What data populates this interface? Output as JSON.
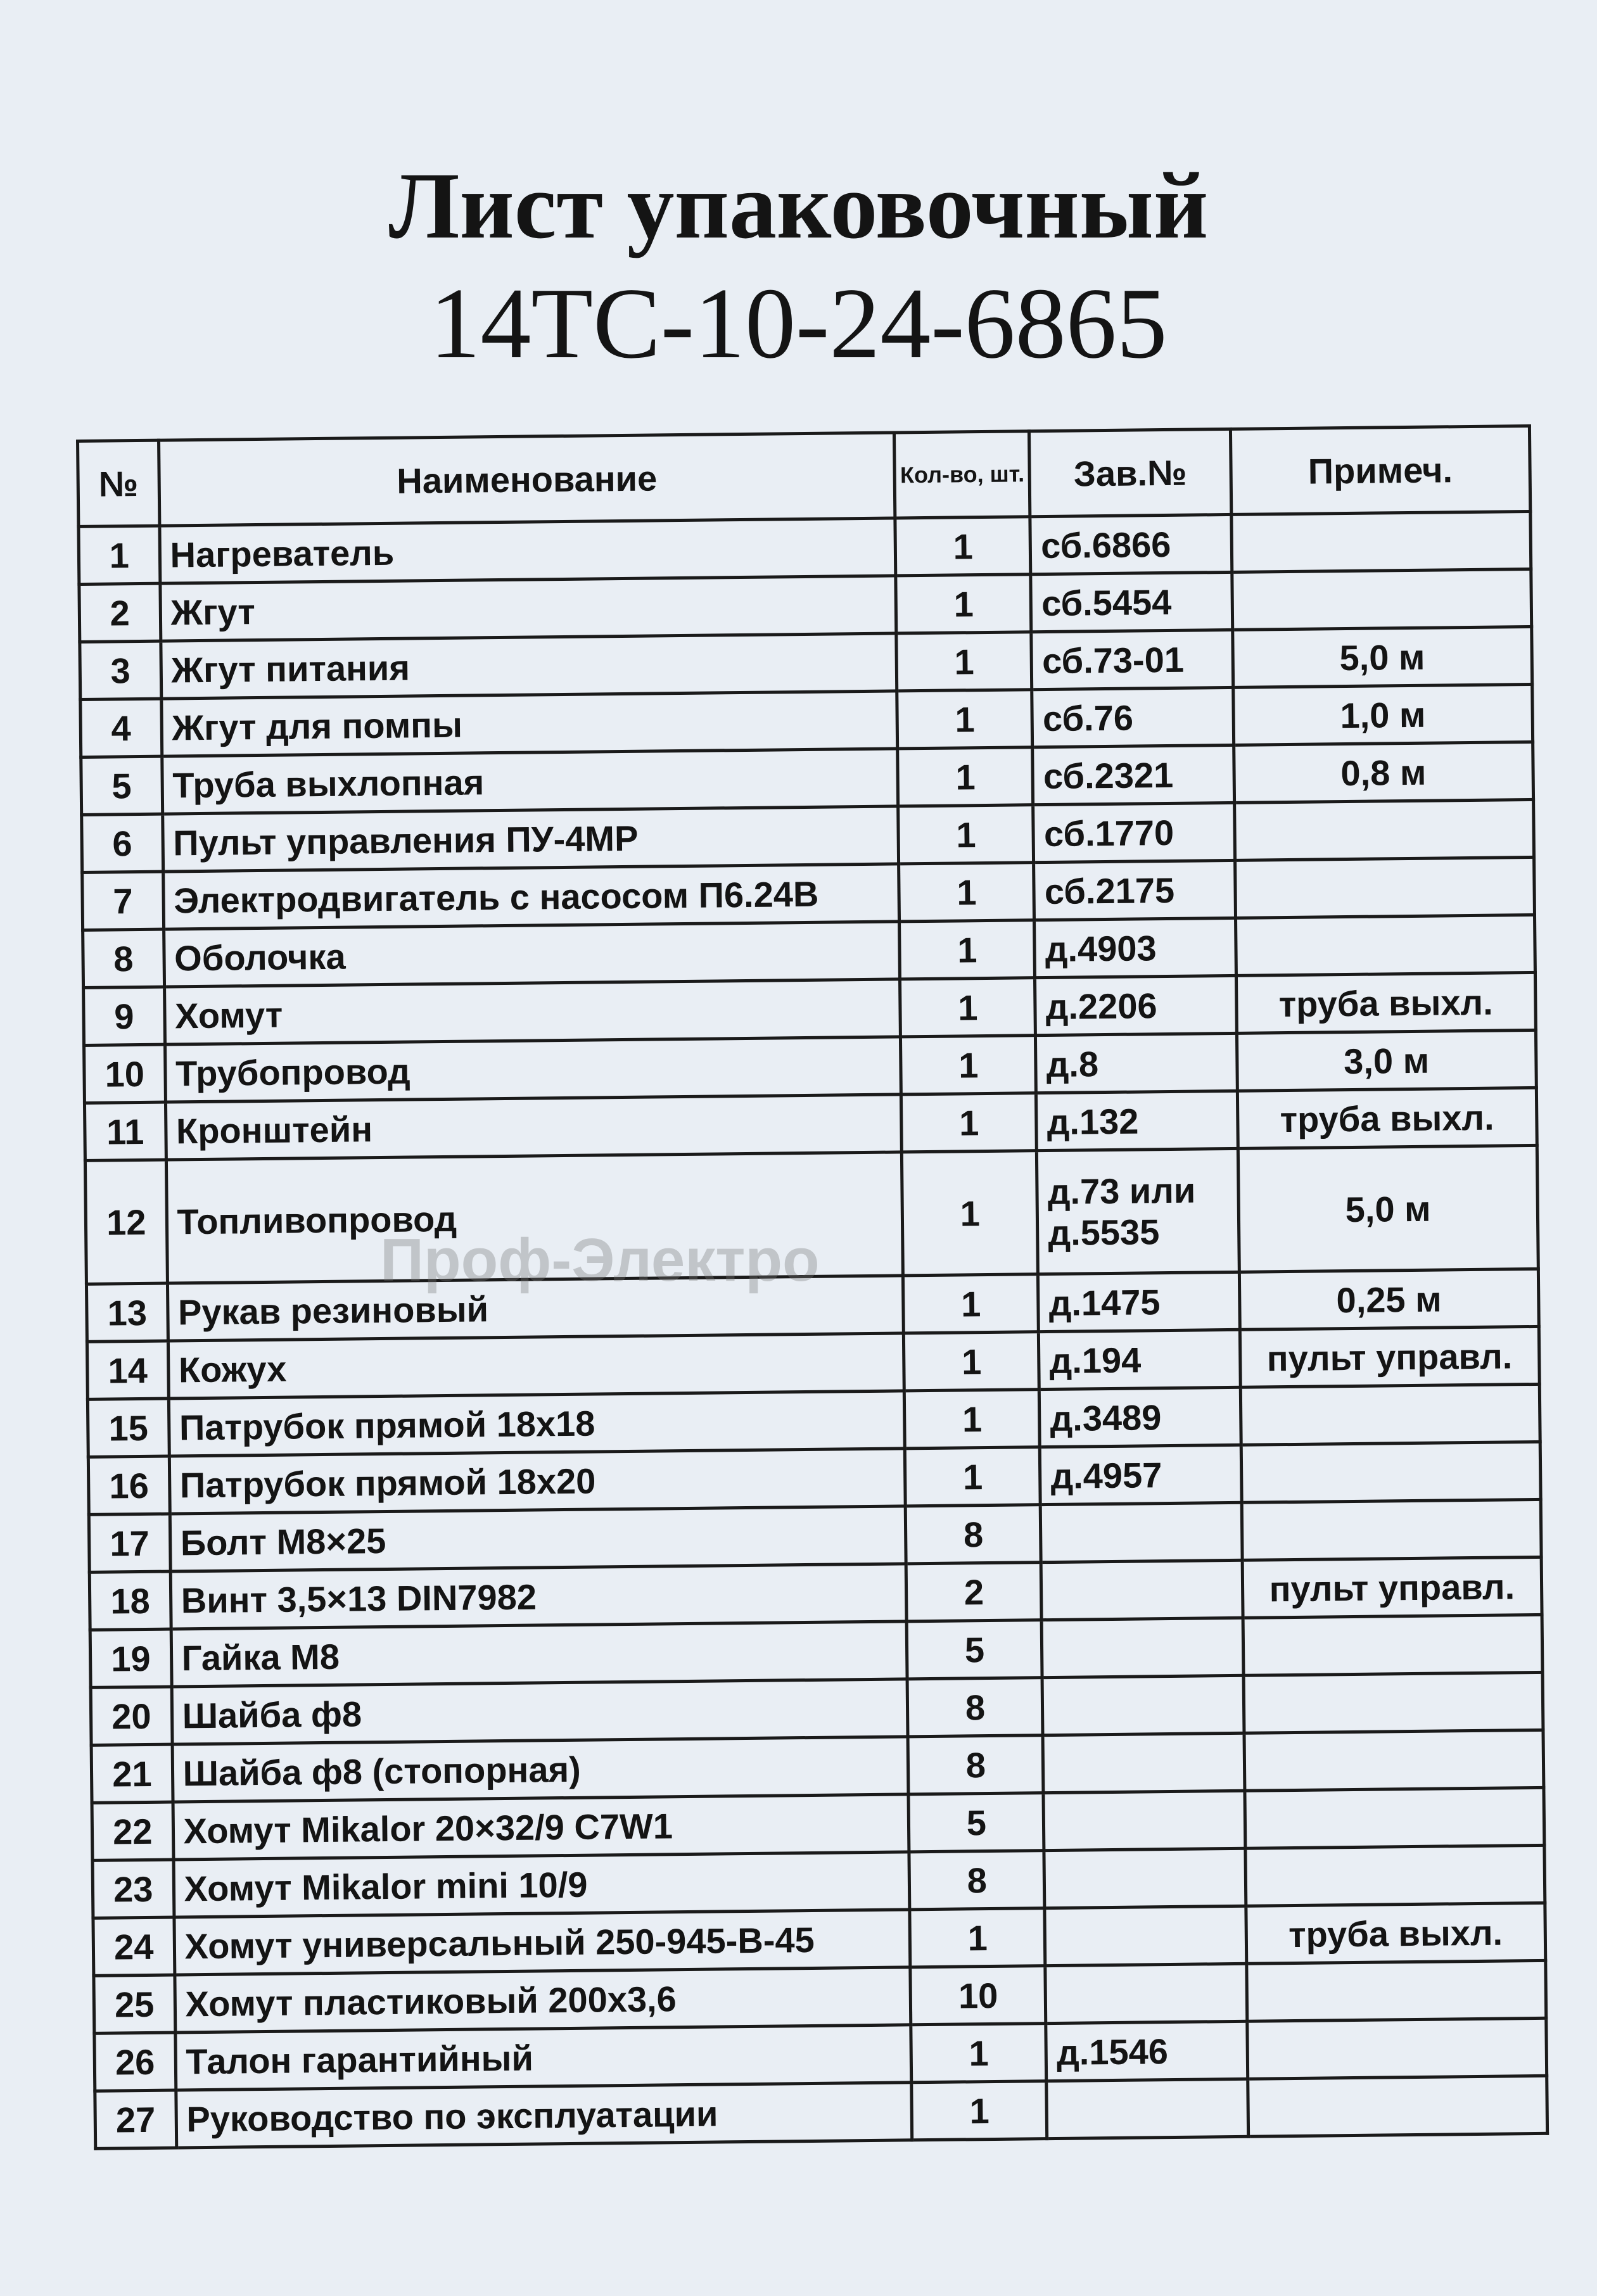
{
  "title": "Лист упаковочный",
  "subtitle": "14ТС-10-24-6865",
  "watermark": "Проф-Электро",
  "table": {
    "headers": [
      "№",
      "Наименование",
      "Кол-во, шт.",
      "Зав.№",
      "Примеч."
    ],
    "rows": [
      {
        "no": "1",
        "name": "Нагреватель",
        "qty": "1",
        "zav": "сб.6866",
        "note": ""
      },
      {
        "no": "2",
        "name": "Жгут",
        "qty": "1",
        "zav": "сб.5454",
        "note": ""
      },
      {
        "no": "3",
        "name": "Жгут питания",
        "qty": "1",
        "zav": "сб.73-01",
        "note": "5,0 м"
      },
      {
        "no": "4",
        "name": "Жгут для помпы",
        "qty": "1",
        "zav": "сб.76",
        "note": "1,0 м"
      },
      {
        "no": "5",
        "name": "Труба выхлопная",
        "qty": "1",
        "zav": "сб.2321",
        "note": "0,8 м"
      },
      {
        "no": "6",
        "name": "Пульт управления ПУ-4МР",
        "qty": "1",
        "zav": "сб.1770",
        "note": ""
      },
      {
        "no": "7",
        "name": "Электродвигатель с насосом П6.24В",
        "qty": "1",
        "zav": "сб.2175",
        "note": ""
      },
      {
        "no": "8",
        "name": "Оболочка",
        "qty": "1",
        "zav": "д.4903",
        "note": ""
      },
      {
        "no": "9",
        "name": "Хомут",
        "qty": "1",
        "zav": "д.2206",
        "note": "труба выхл."
      },
      {
        "no": "10",
        "name": "Трубопровод",
        "qty": "1",
        "zav": "д.8",
        "note": "3,0 м"
      },
      {
        "no": "11",
        "name": "Кронштейн",
        "qty": "1",
        "zav": "д.132",
        "note": "труба выхл."
      },
      {
        "no": "12",
        "name": "Топливопровод",
        "qty": "1",
        "zav": "д.73 или д.5535",
        "note": "5,0 м"
      },
      {
        "no": "13",
        "name": "Рукав резиновый",
        "qty": "1",
        "zav": "д.1475",
        "note": "0,25 м"
      },
      {
        "no": "14",
        "name": "Кожух",
        "qty": "1",
        "zav": "д.194",
        "note": "пульт управл."
      },
      {
        "no": "15",
        "name": "Патрубок прямой 18x18",
        "qty": "1",
        "zav": "д.3489",
        "note": ""
      },
      {
        "no": "16",
        "name": "Патрубок прямой 18x20",
        "qty": "1",
        "zav": "д.4957",
        "note": ""
      },
      {
        "no": "17",
        "name": "Болт М8×25",
        "qty": "8",
        "zav": "",
        "note": ""
      },
      {
        "no": "18",
        "name": "Винт 3,5×13 DIN7982",
        "qty": "2",
        "zav": "",
        "note": "пульт управл."
      },
      {
        "no": "19",
        "name": "Гайка М8",
        "qty": "5",
        "zav": "",
        "note": ""
      },
      {
        "no": "20",
        "name": "Шайба ф8",
        "qty": "8",
        "zav": "",
        "note": ""
      },
      {
        "no": "21",
        "name": "Шайба ф8 (стопорная)",
        "qty": "8",
        "zav": "",
        "note": ""
      },
      {
        "no": "22",
        "name": "Хомут Mikalor 20×32/9 C7W1",
        "qty": "5",
        "zav": "",
        "note": ""
      },
      {
        "no": "23",
        "name": "Хомут Mikalor mini 10/9",
        "qty": "8",
        "zav": "",
        "note": ""
      },
      {
        "no": "24",
        "name": "Хомут универсальный 250-945-B-45",
        "qty": "1",
        "zav": "",
        "note": "труба выхл."
      },
      {
        "no": "25",
        "name": "Хомут пластиковый 200x3,6",
        "qty": "10",
        "zav": "",
        "note": ""
      },
      {
        "no": "26",
        "name": "Талон гарантийный",
        "qty": "1",
        "zav": "д.1546",
        "note": ""
      },
      {
        "no": "27",
        "name": "Руководство по эксплуатации",
        "qty": "1",
        "zav": "",
        "note": ""
      }
    ]
  }
}
